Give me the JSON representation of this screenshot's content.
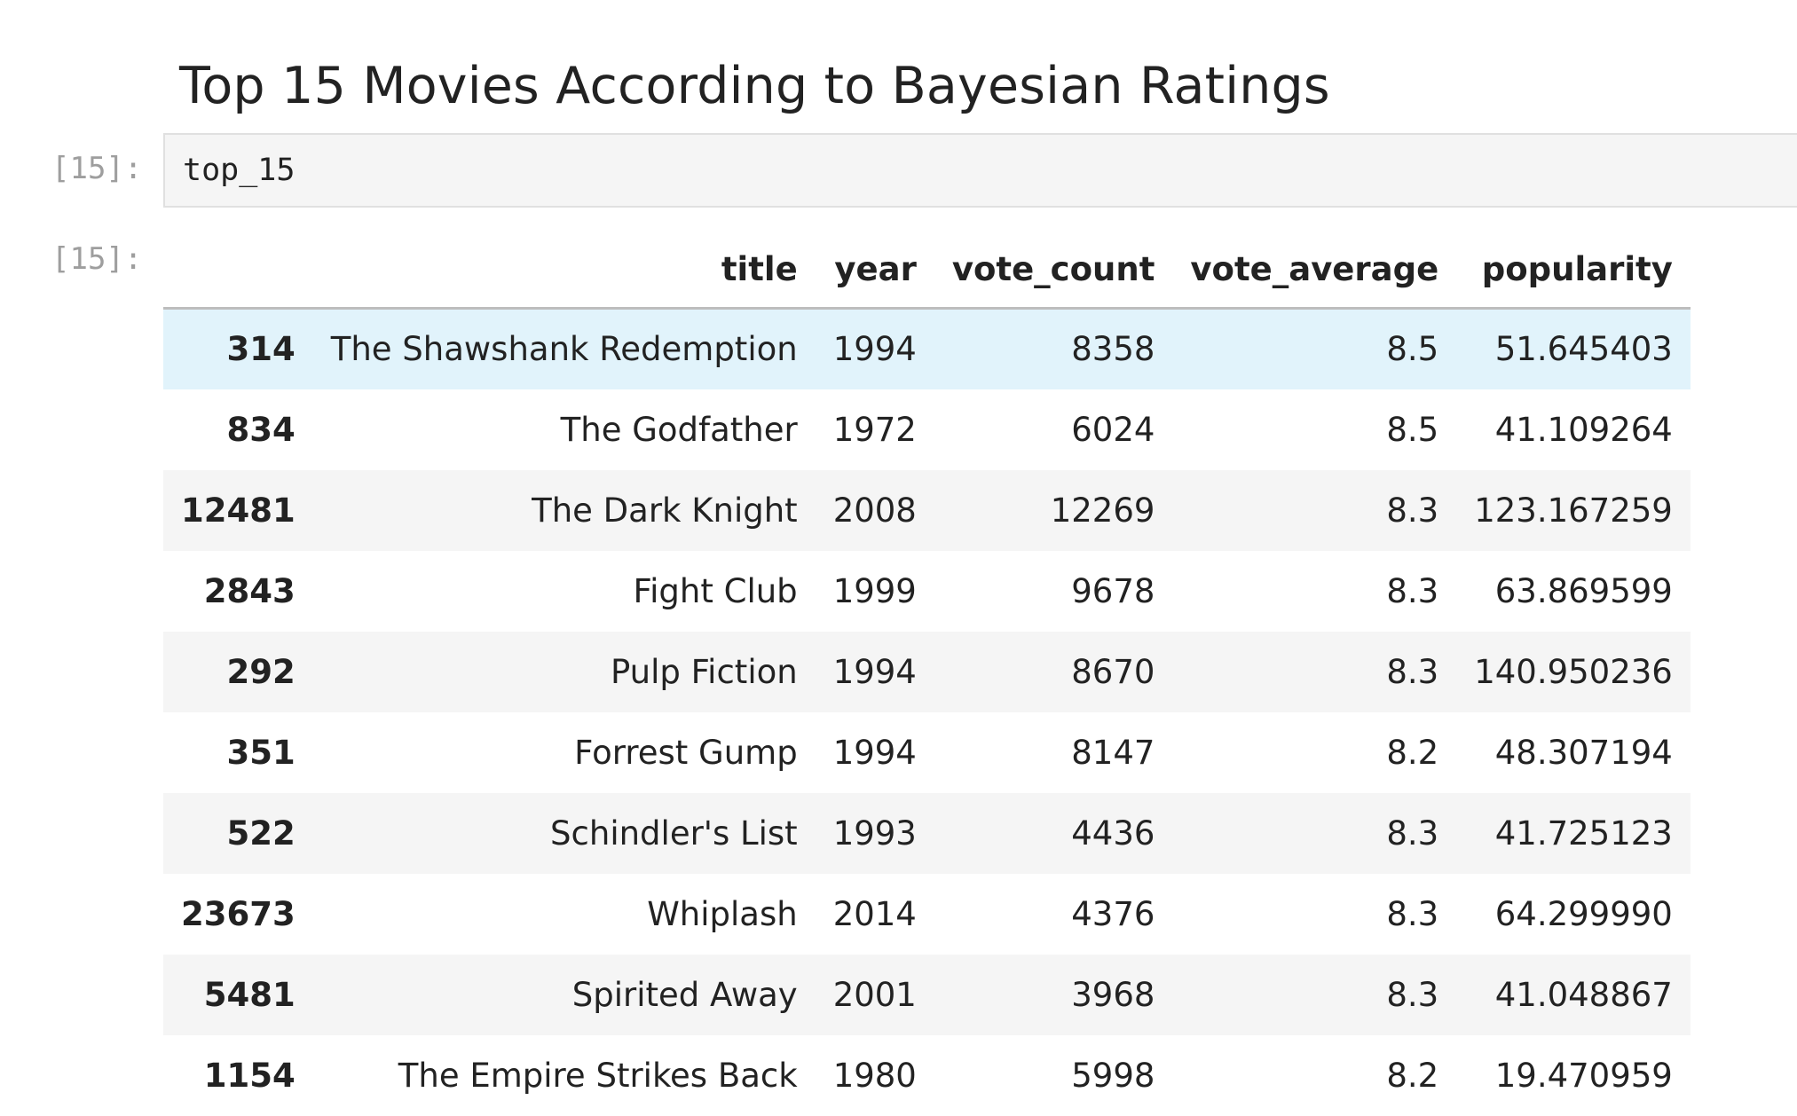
{
  "heading": "Top 15 Movies According to Bayesian Ratings",
  "cells": {
    "input_prompt": "[15]:",
    "input_code": "top_15",
    "output_prompt": "[15]:"
  },
  "table": {
    "columns": [
      "title",
      "year",
      "vote_count",
      "vote_average",
      "popularity"
    ],
    "rows": [
      {
        "index": "314",
        "title": "The Shawshank Redemption",
        "year": "1994",
        "vote_count": "8358",
        "vote_average": "8.5",
        "popularity": "51.645403"
      },
      {
        "index": "834",
        "title": "The Godfather",
        "year": "1972",
        "vote_count": "6024",
        "vote_average": "8.5",
        "popularity": "41.109264"
      },
      {
        "index": "12481",
        "title": "The Dark Knight",
        "year": "2008",
        "vote_count": "12269",
        "vote_average": "8.3",
        "popularity": "123.167259"
      },
      {
        "index": "2843",
        "title": "Fight Club",
        "year": "1999",
        "vote_count": "9678",
        "vote_average": "8.3",
        "popularity": "63.869599"
      },
      {
        "index": "292",
        "title": "Pulp Fiction",
        "year": "1994",
        "vote_count": "8670",
        "vote_average": "8.3",
        "popularity": "140.950236"
      },
      {
        "index": "351",
        "title": "Forrest Gump",
        "year": "1994",
        "vote_count": "8147",
        "vote_average": "8.2",
        "popularity": "48.307194"
      },
      {
        "index": "522",
        "title": "Schindler's List",
        "year": "1993",
        "vote_count": "4436",
        "vote_average": "8.3",
        "popularity": "41.725123"
      },
      {
        "index": "23673",
        "title": "Whiplash",
        "year": "2014",
        "vote_count": "4376",
        "vote_average": "8.3",
        "popularity": "64.299990"
      },
      {
        "index": "5481",
        "title": "Spirited Away",
        "year": "2001",
        "vote_count": "3968",
        "vote_average": "8.3",
        "popularity": "41.048867"
      },
      {
        "index": "1154",
        "title": "The Empire Strikes Back",
        "year": "1980",
        "vote_count": "5998",
        "vote_average": "8.2",
        "popularity": "19.470959"
      }
    ]
  },
  "colors": {
    "hover_row": "#e1f3fb",
    "striped_row": "#f5f5f5",
    "prompt": "#9e9e9e"
  }
}
